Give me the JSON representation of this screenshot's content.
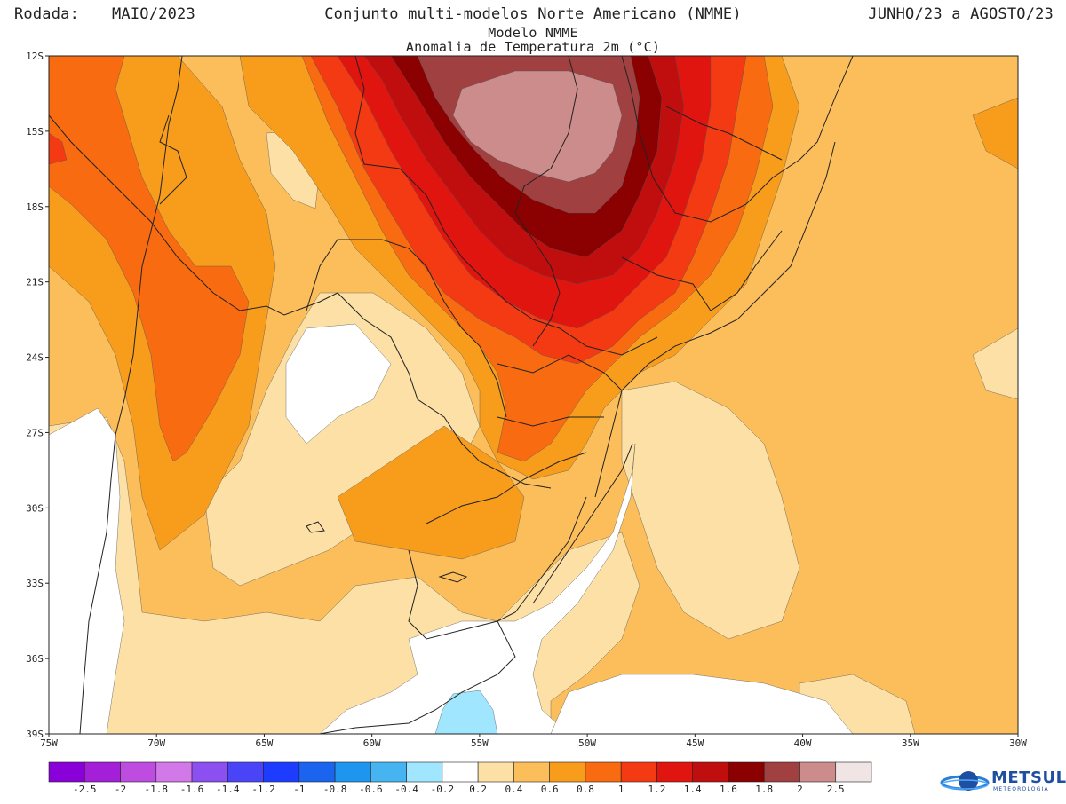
{
  "header": {
    "rodada_label": "Rodada:",
    "rodada_value": "MAIO/2023",
    "title": "Conjunto multi-modelos Norte Americano (NMME)",
    "period": "JUNHO/23 a AGOSTO/23",
    "subtitle1": "Modelo NMME",
    "subtitle2": "Anomalia de Temperatura 2m (°C)"
  },
  "map": {
    "lon_labels": [
      "75W",
      "70W",
      "65W",
      "60W",
      "55W",
      "50W",
      "45W",
      "40W",
      "35W",
      "30W"
    ],
    "lat_labels": [
      "12S",
      "15S",
      "18S",
      "21S",
      "24S",
      "27S",
      "30S",
      "33S",
      "36S",
      "39S"
    ],
    "lon_range": [
      -75,
      -30
    ],
    "lat_range": [
      -39,
      -12
    ],
    "colors": {
      "c02": "#fde0a6",
      "c04": "#fbbe5a",
      "c06": "#f89c1c",
      "c08": "#f86b10",
      "c10": "#f33a12",
      "c12": "#e01510",
      "c14": "#c00d0d",
      "c16": "#8b0000",
      "c18": "#a04040",
      "c20": "#cc8c8c",
      "cneg": "#a0e6ff",
      "white": "#ffffff"
    }
  },
  "legend": {
    "labels": [
      "-2.5",
      "-2",
      "-1.8",
      "-1.6",
      "-1.4",
      "-1.2",
      "-1",
      "-0.8",
      "-0.6",
      "-0.4",
      "-0.2",
      "0.2",
      "0.4",
      "0.6",
      "0.8",
      "1",
      "1.2",
      "1.4",
      "1.6",
      "1.8",
      "2",
      "2.5"
    ],
    "colors": [
      "#8a00d8",
      "#a41fd8",
      "#be4ce0",
      "#d278e8",
      "#8c50f0",
      "#4a44f8",
      "#1e3cff",
      "#1a64f0",
      "#1e96f0",
      "#46b4f0",
      "#a0e6ff",
      "#ffffff",
      "#fde0a6",
      "#fbbe5a",
      "#f89c1c",
      "#f86b10",
      "#f33a12",
      "#e01510",
      "#c00d0d",
      "#8b0000",
      "#a04040",
      "#cc8c8c",
      "#f0e4e4"
    ]
  },
  "logo": {
    "name": "METSUL",
    "sub": "METEOROLOGIA"
  }
}
